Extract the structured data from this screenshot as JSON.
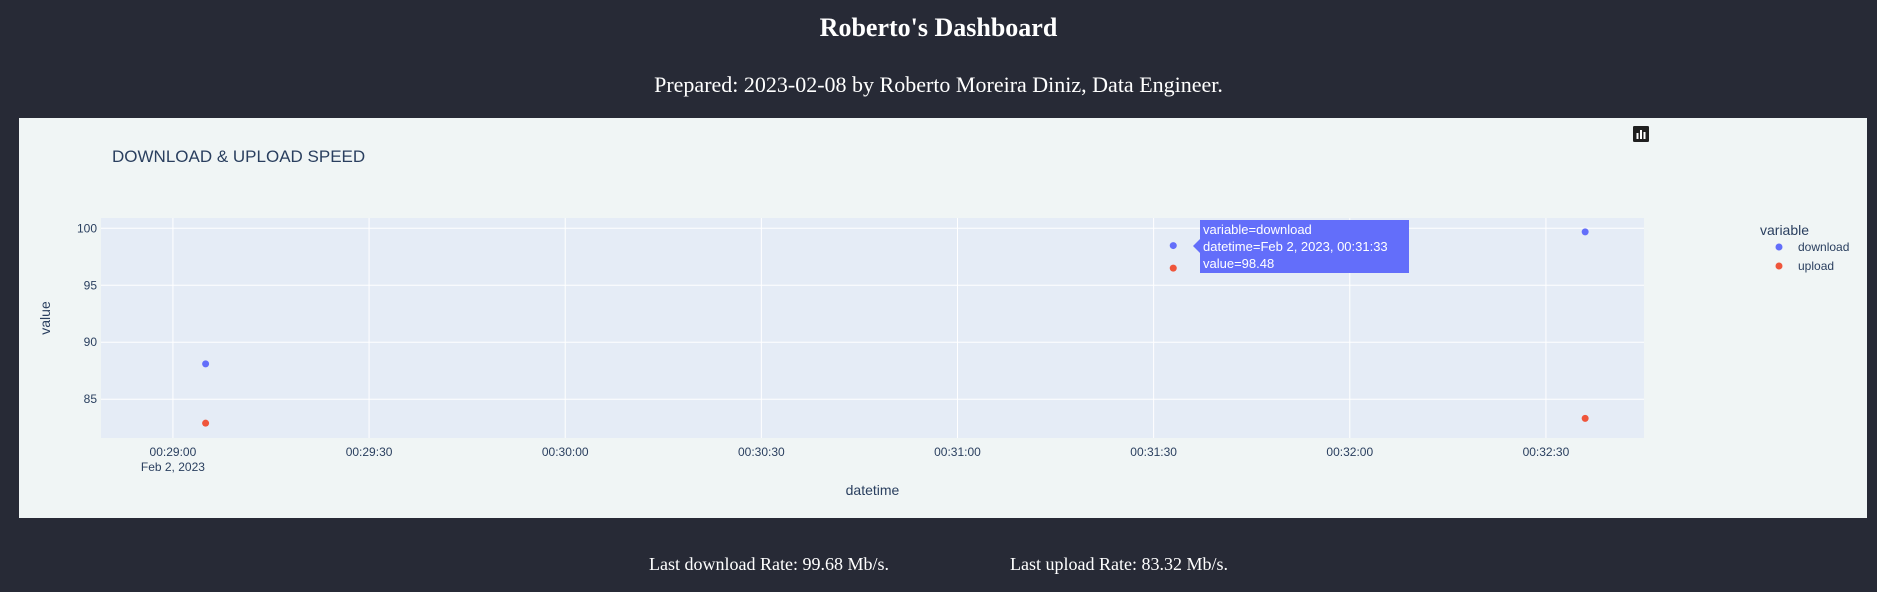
{
  "page": {
    "title": "Roberto's Dashboard",
    "subtitle": "Prepared: 2023-02-08 by Roberto Moreira Diniz, Data Engineer."
  },
  "footer": {
    "download": "Last download Rate: 99.68 Mb/s.",
    "upload": "Last upload Rate: 83.32 Mb/s."
  },
  "modebar": {
    "icons": [
      "camera-icon",
      "zoom-icon",
      "pan-icon",
      "box-select-icon",
      "lasso-icon",
      "zoom-in-icon",
      "zoom-out-icon",
      "autoscale-icon",
      "reset-axes-icon",
      "plotly-logo-icon"
    ]
  },
  "tooltip": {
    "line1": "variable=download",
    "line2": "datetime=Feb 2, 2023, 00:31:33",
    "line3": "value=98.48"
  },
  "colors": {
    "background": "#272a36",
    "panel": "#f0f5f5",
    "plot_bg": "#e5ecf6",
    "download": "#636efa",
    "upload": "#ef553b"
  },
  "chart_data": {
    "type": "scatter",
    "title": "DOWNLOAD & UPLOAD SPEED",
    "xlabel": "datetime",
    "ylabel": "value",
    "legend_title": "variable",
    "legend_position": "right",
    "grid": true,
    "x_date": "Feb 2, 2023",
    "xlim": [
      "00:28:49",
      "00:32:45"
    ],
    "ylim": [
      81.6,
      100.9
    ],
    "x_ticks": [
      "00:29:00",
      "00:29:30",
      "00:30:00",
      "00:30:30",
      "00:31:00",
      "00:31:30",
      "00:32:00",
      "00:32:30"
    ],
    "x_tick_sub": "Feb 2, 2023",
    "y_ticks": [
      85,
      90,
      95,
      100
    ],
    "series": [
      {
        "name": "download",
        "color": "#636efa",
        "points": [
          {
            "x": "00:29:05",
            "y": 88.1
          },
          {
            "x": "00:31:33",
            "y": 98.48
          },
          {
            "x": "00:32:36",
            "y": 99.68
          }
        ]
      },
      {
        "name": "upload",
        "color": "#ef553b",
        "points": [
          {
            "x": "00:29:05",
            "y": 82.9
          },
          {
            "x": "00:31:33",
            "y": 96.5
          },
          {
            "x": "00:32:36",
            "y": 83.32
          }
        ]
      }
    ]
  }
}
